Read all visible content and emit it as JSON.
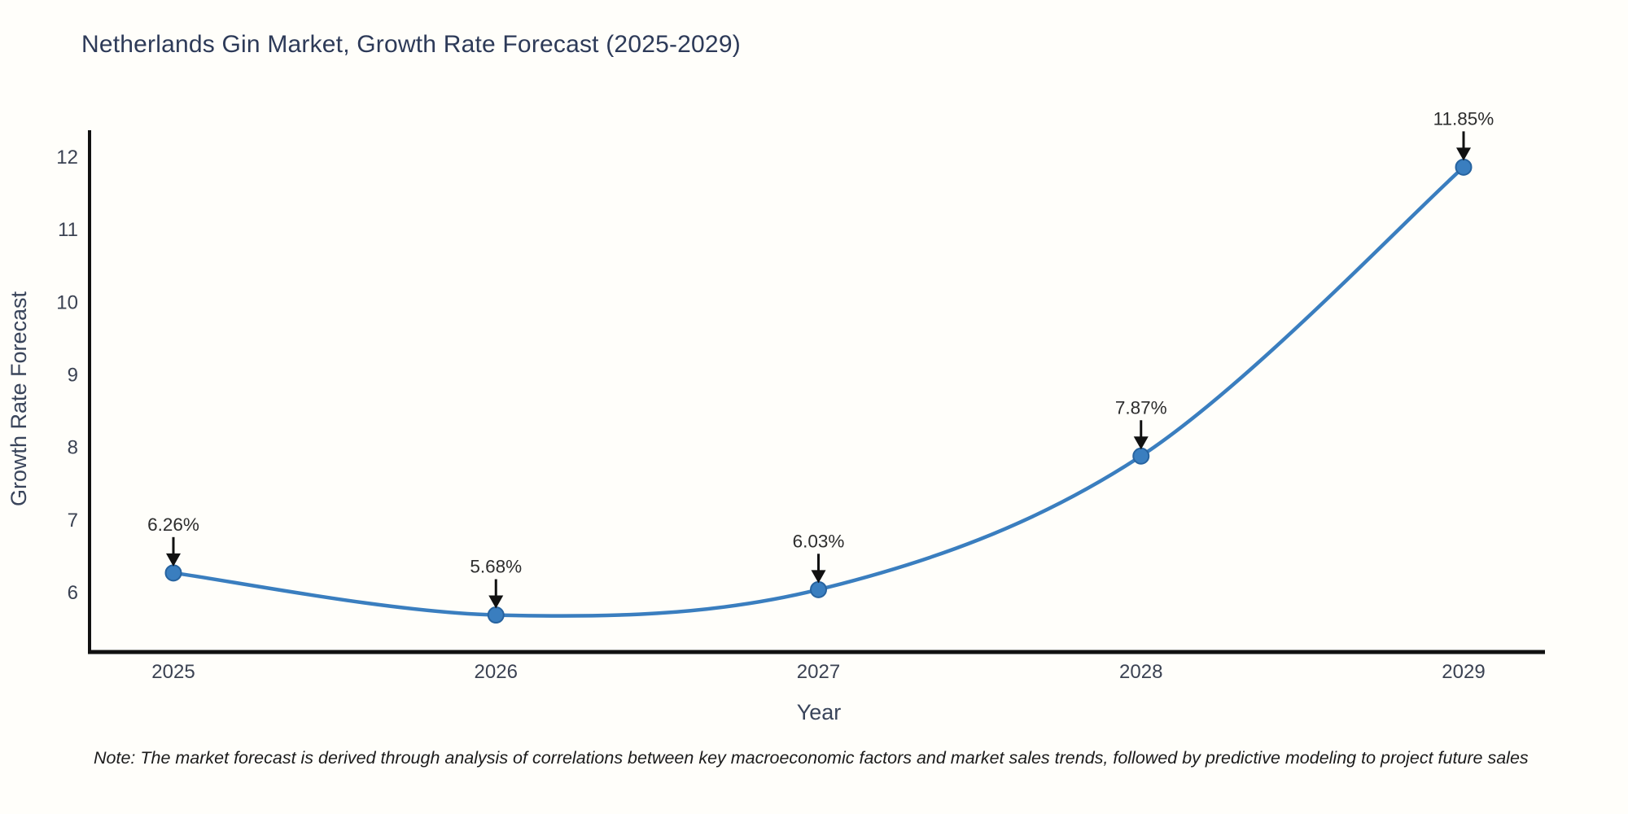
{
  "chart_data": {
    "type": "line",
    "title": "Netherlands Gin Market, Growth Rate Forecast (2025-2029)",
    "xlabel": "Year",
    "ylabel": "Growth Rate Forecast",
    "x": [
      2025,
      2026,
      2027,
      2028,
      2029
    ],
    "values": [
      6.26,
      5.68,
      6.03,
      7.87,
      11.85
    ],
    "point_labels": [
      "6.26%",
      "5.68%",
      "6.03%",
      "7.87%",
      "11.85%"
    ],
    "x_ticks": [
      "2025",
      "2026",
      "2027",
      "2028",
      "2029"
    ],
    "y_ticks": [
      6,
      7,
      8,
      9,
      10,
      11,
      12
    ],
    "ylim": [
      5.1,
      12.4
    ],
    "grid": false,
    "legend_position": "none",
    "line_shape": "spline",
    "note": "Note: The market forecast is derived through analysis of correlations between key macroeconomic factors and market sales trends, followed by predictive modeling to project future sales",
    "colors": {
      "line": "#3a7ebf",
      "marker_fill": "#3a7ebf",
      "marker_stroke": "#27639f",
      "axis": "#111111",
      "annotation_arrow": "#111111",
      "annotation_text": "#2d2d2d",
      "tick_text": "#3b4252",
      "axis_label_text": "#39445a",
      "title_text": "#2d3a58",
      "note_text": "#1b1b1b"
    }
  }
}
